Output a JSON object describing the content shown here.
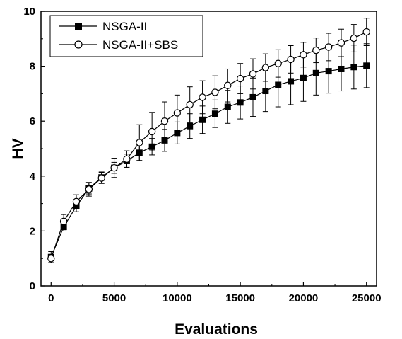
{
  "chart_data": {
    "type": "line",
    "xlabel": "Evaluations",
    "ylabel": "HV",
    "xlim": [
      -800,
      25800
    ],
    "ylim": [
      0,
      10
    ],
    "xticks": [
      0,
      5000,
      10000,
      15000,
      20000,
      25000
    ],
    "yticks": [
      0,
      2,
      4,
      6,
      8,
      10
    ],
    "xtick_labels": [
      "0",
      "5000",
      "10000",
      "15000",
      "20000",
      "25000"
    ],
    "ytick_labels": [
      "0",
      "2",
      "4",
      "6",
      "8",
      "10"
    ],
    "legend_position": "top-left",
    "grid": false,
    "x": [
      0,
      1000,
      2000,
      3000,
      4000,
      5000,
      6000,
      7000,
      8000,
      9000,
      10000,
      11000,
      12000,
      13000,
      14000,
      15000,
      16000,
      17000,
      18000,
      19000,
      20000,
      21000,
      22000,
      23000,
      24000,
      25000
    ],
    "series": [
      {
        "name": "NSGA-II",
        "marker": "filled-square",
        "color": "#000000",
        "values": [
          1.05,
          2.15,
          2.9,
          3.55,
          3.95,
          4.3,
          4.55,
          4.85,
          5.07,
          5.3,
          5.57,
          5.82,
          6.05,
          6.27,
          6.52,
          6.68,
          6.87,
          7.1,
          7.32,
          7.45,
          7.57,
          7.75,
          7.82,
          7.9,
          7.97,
          8.02
        ],
        "errors": [
          0.2,
          0.15,
          0.2,
          0.2,
          0.2,
          0.2,
          0.25,
          0.3,
          0.3,
          0.4,
          0.4,
          0.45,
          0.5,
          0.5,
          0.6,
          0.6,
          0.7,
          0.75,
          0.8,
          0.85,
          0.85,
          0.8,
          0.8,
          0.8,
          0.8,
          0.8
        ]
      },
      {
        "name": "NSGA-II+SBS",
        "marker": "open-circle",
        "color": "#000000",
        "values": [
          1.0,
          2.35,
          3.07,
          3.52,
          3.93,
          4.3,
          4.62,
          5.22,
          5.62,
          6.0,
          6.3,
          6.6,
          6.87,
          7.05,
          7.3,
          7.55,
          7.72,
          7.95,
          8.1,
          8.25,
          8.42,
          8.58,
          8.7,
          8.85,
          9.02,
          9.25
        ],
        "errors": [
          0.15,
          0.25,
          0.25,
          0.25,
          0.2,
          0.35,
          0.3,
          0.65,
          0.7,
          0.7,
          0.65,
          0.65,
          0.6,
          0.6,
          0.6,
          0.55,
          0.55,
          0.5,
          0.5,
          0.5,
          0.45,
          0.45,
          0.5,
          0.5,
          0.5,
          0.5
        ]
      }
    ]
  }
}
